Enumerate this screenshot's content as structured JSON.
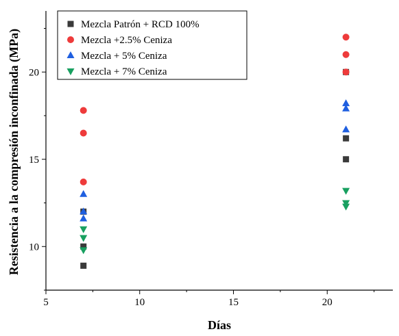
{
  "chart_data": {
    "type": "scatter",
    "xlabel": "Días",
    "ylabel": "Resistencia a la compresión inconfinada (MPa)",
    "xlim": [
      5,
      23.5
    ],
    "ylim": [
      7.5,
      23.5
    ],
    "xticks": [
      5,
      10,
      15,
      20
    ],
    "yticks": [
      10,
      15,
      20
    ],
    "legend_position": "top-center",
    "series": [
      {
        "name": "Mezcla Patrón + RCD 100%",
        "marker": "square",
        "color": "#3a3a3a",
        "points": [
          [
            7,
            8.9
          ],
          [
            7,
            10.0
          ],
          [
            7,
            12.0
          ],
          [
            21,
            15.0
          ],
          [
            21,
            16.2
          ],
          [
            21,
            20.0
          ]
        ]
      },
      {
        "name": "Mezcla +2.5% Ceniza",
        "marker": "circle",
        "color": "#ee3b3b",
        "points": [
          [
            7,
            13.7
          ],
          [
            7,
            16.5
          ],
          [
            7,
            17.8
          ],
          [
            21,
            20.0
          ],
          [
            21,
            21.0
          ],
          [
            21,
            22.0
          ]
        ]
      },
      {
        "name": "Mezcla + 5% Ceniza",
        "marker": "triangle-up",
        "color": "#1f5fe0",
        "points": [
          [
            7,
            11.6
          ],
          [
            7,
            12.0
          ],
          [
            7,
            13.0
          ],
          [
            21,
            16.7
          ],
          [
            21,
            17.9
          ],
          [
            21,
            18.2
          ]
        ]
      },
      {
        "name": "Mezcla + 7% Ceniza",
        "marker": "triangle-down",
        "color": "#18a060",
        "points": [
          [
            7,
            9.8
          ],
          [
            7,
            10.5
          ],
          [
            7,
            11.0
          ],
          [
            21,
            12.3
          ],
          [
            21,
            12.5
          ],
          [
            21,
            13.2
          ]
        ]
      }
    ]
  }
}
